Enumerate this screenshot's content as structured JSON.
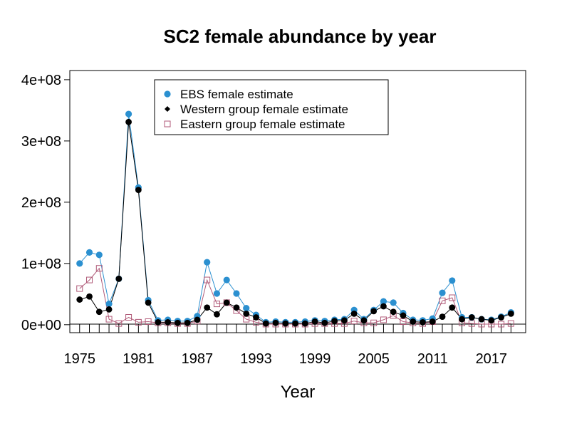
{
  "chart_data": {
    "type": "line",
    "title": "SC2 female abundance by year",
    "xlabel": "Year",
    "ylabel": "",
    "xlim": [
      1974,
      2020.5
    ],
    "ylim": [
      -13000000,
      415000000
    ],
    "x_ticks": [
      1975,
      1981,
      1987,
      1993,
      1999,
      2005,
      2011,
      2017
    ],
    "y_ticks": [
      0,
      100000000,
      200000000,
      300000000,
      400000000
    ],
    "y_tick_labels": [
      "0e+00",
      "1e+08",
      "2e+08",
      "3e+08",
      "4e+08"
    ],
    "baseline": 0,
    "legend_position": "top-left",
    "x": [
      1975,
      1976,
      1977,
      1978,
      1979,
      1980,
      1981,
      1982,
      1983,
      1984,
      1985,
      1986,
      1987,
      1988,
      1989,
      1990,
      1991,
      1992,
      1993,
      1994,
      1995,
      1996,
      1997,
      1998,
      1999,
      2000,
      2001,
      2002,
      2003,
      2004,
      2005,
      2006,
      2007,
      2008,
      2009,
      2010,
      2011,
      2012,
      2013,
      2014,
      2015,
      2016,
      2017,
      2018,
      2019
    ],
    "series": [
      {
        "name": "EBS female estimate",
        "color": "#2b90d0",
        "marker": "circle",
        "values": [
          100000000,
          118000000,
          114000000,
          34000000,
          75000000,
          344000000,
          224000000,
          40000000,
          7000000,
          8000000,
          6000000,
          6000000,
          14000000,
          102000000,
          51000000,
          73000000,
          51000000,
          27000000,
          16000000,
          4000000,
          5000000,
          4000000,
          4000000,
          5000000,
          7000000,
          6000000,
          8000000,
          9000000,
          24000000,
          9000000,
          24000000,
          38000000,
          36000000,
          19000000,
          8000000,
          7000000,
          10000000,
          52000000,
          72000000,
          12000000,
          12000000,
          9000000,
          8000000,
          13000000,
          20000000
        ]
      },
      {
        "name": "Western group female estimate",
        "color": "#000000",
        "marker": "diamond",
        "values": [
          41000000,
          46000000,
          21000000,
          25000000,
          75000000,
          331000000,
          220000000,
          36000000,
          4000000,
          4000000,
          3000000,
          3000000,
          8000000,
          28000000,
          17000000,
          36000000,
          28000000,
          18000000,
          12000000,
          2000000,
          3000000,
          2000000,
          2000000,
          2000000,
          5000000,
          3000000,
          6000000,
          7000000,
          18000000,
          7000000,
          22000000,
          30000000,
          21000000,
          15000000,
          5000000,
          4000000,
          5000000,
          13000000,
          28000000,
          9000000,
          12000000,
          9000000,
          7000000,
          12000000,
          18000000
        ]
      },
      {
        "name": "Eastern group female estimate",
        "color": "#b05a78",
        "marker": "square-open",
        "values": [
          59000000,
          73000000,
          92000000,
          9000000,
          2000000,
          12000000,
          4000000,
          5000000,
          3000000,
          3000000,
          2000000,
          2000000,
          6000000,
          73000000,
          34000000,
          36000000,
          23000000,
          9000000,
          4000000,
          1000000,
          1000000,
          1000000,
          1000000,
          1000000,
          2000000,
          2000000,
          2000000,
          2000000,
          6000000,
          3000000,
          3000000,
          8000000,
          15000000,
          5000000,
          3000000,
          2000000,
          5000000,
          39000000,
          44000000,
          3000000,
          2000000,
          1000000,
          1000000,
          1000000,
          2000000
        ]
      }
    ]
  }
}
